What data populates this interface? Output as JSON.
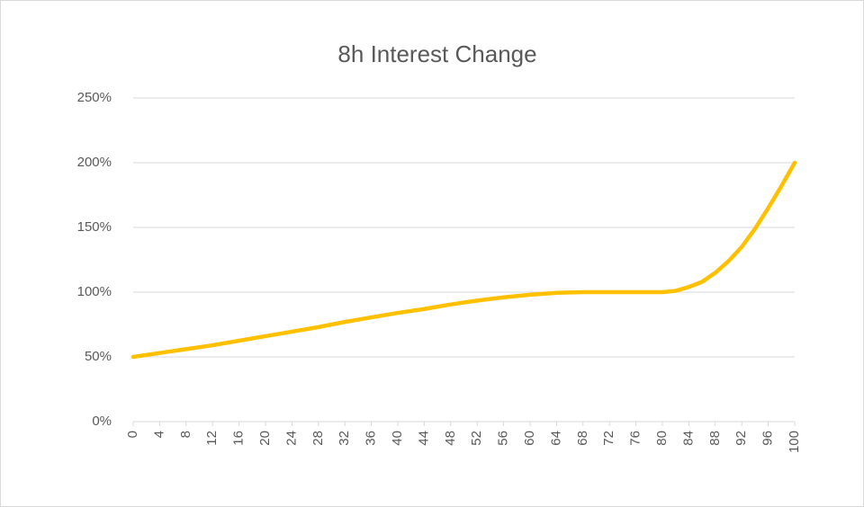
{
  "chart_data": {
    "type": "line",
    "title": "8h Interest Change",
    "x": [
      0,
      4,
      8,
      12,
      16,
      20,
      24,
      28,
      32,
      36,
      40,
      44,
      48,
      52,
      56,
      60,
      64,
      68,
      72,
      76,
      80,
      82,
      84,
      86,
      88,
      90,
      92,
      94,
      96,
      98,
      100
    ],
    "series": [
      {
        "name": "8h Interest Change",
        "color": "#ffc000",
        "values": [
          50,
          53,
          56,
          59,
          62.5,
          66,
          69.5,
          73,
          77,
          80.5,
          84,
          87,
          90.5,
          93.5,
          96,
          98,
          99.5,
          100,
          100,
          100,
          100,
          101,
          104,
          108,
          115,
          124,
          135,
          149,
          165,
          182,
          200
        ]
      }
    ],
    "xlim": [
      0,
      100
    ],
    "xticks": [
      0,
      4,
      8,
      12,
      16,
      20,
      24,
      28,
      32,
      36,
      40,
      44,
      48,
      52,
      56,
      60,
      64,
      68,
      72,
      76,
      80,
      84,
      88,
      92,
      96,
      100
    ],
    "ylim": [
      0,
      250
    ],
    "yticks": [
      {
        "value": 0,
        "label": "0%"
      },
      {
        "value": 50,
        "label": "50%"
      },
      {
        "value": 100,
        "label": "100%"
      },
      {
        "value": 150,
        "label": "150%"
      },
      {
        "value": 200,
        "label": "200%"
      },
      {
        "value": 250,
        "label": "250%"
      }
    ],
    "grid": true
  }
}
